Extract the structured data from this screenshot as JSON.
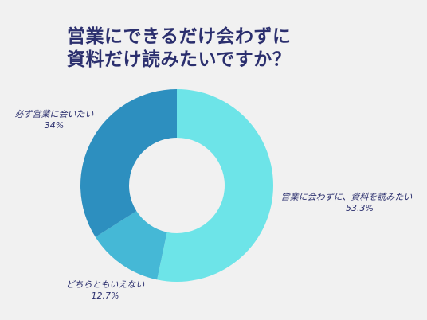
{
  "chart_data": {
    "type": "pie",
    "variant": "donut",
    "title_lines": [
      "営業にできるだけ会わずに",
      "資料だけ読みたいですか？"
    ],
    "categories": [
      "営業に会わずに、資料を読みたい",
      "どちらともいえない",
      "必ず営業に会いたい"
    ],
    "values": [
      53.3,
      12.7,
      34
    ],
    "value_labels": [
      "53.3%",
      "12.7%",
      "34%"
    ],
    "colors": [
      "#6de4e8",
      "#45b8d6",
      "#2d8fbf"
    ],
    "background": "#f1f1f1",
    "text_color": "#2b2f6e"
  }
}
